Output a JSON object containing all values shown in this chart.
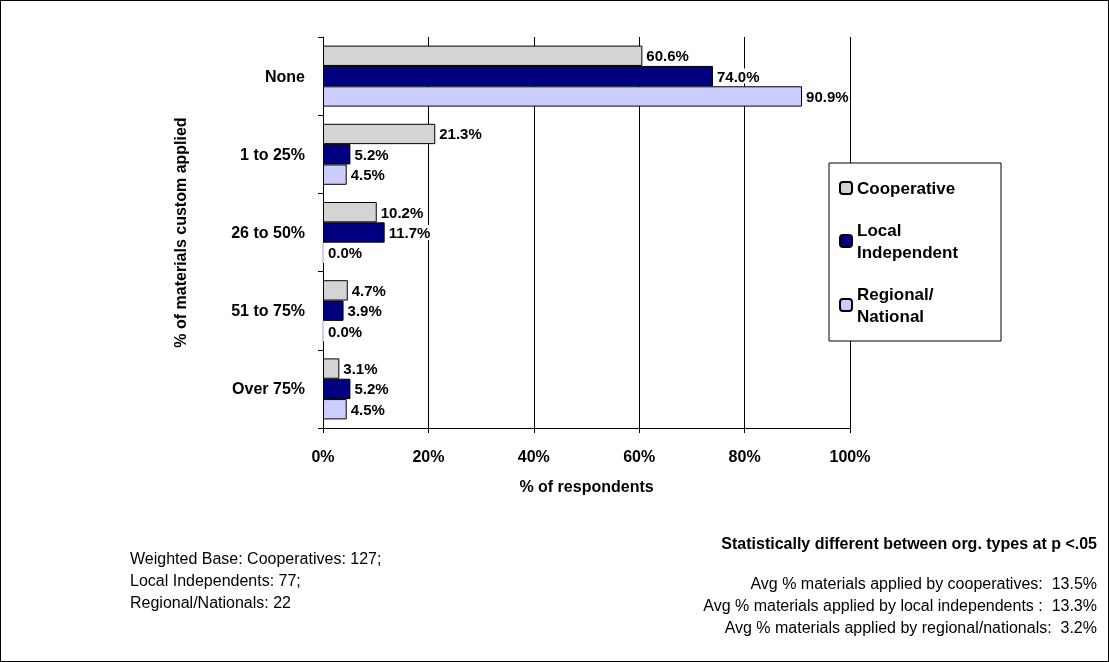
{
  "chart_data": {
    "type": "bar",
    "orientation": "horizontal",
    "categories": [
      "None",
      "1 to 25%",
      "26 to 50%",
      "51 to 75%",
      "Over 75%"
    ],
    "series": [
      {
        "name": "Cooperative",
        "color": "#d4d4d4",
        "values": [
          60.6,
          21.3,
          10.2,
          4.7,
          3.1
        ],
        "value_labels": [
          "60.6%",
          "21.3%",
          "10.2%",
          "4.7%",
          "3.1%"
        ]
      },
      {
        "name": "Local Independent",
        "color": "#000080",
        "values": [
          74.0,
          5.2,
          11.7,
          3.9,
          5.2
        ],
        "value_labels": [
          "74.0%",
          "5.2%",
          "11.7%",
          "3.9%",
          "5.2%"
        ]
      },
      {
        "name": "Regional/ National",
        "color": "#ccccff",
        "values": [
          90.9,
          4.5,
          0.0,
          0.0,
          4.5
        ],
        "value_labels": [
          "90.9%",
          "4.5%",
          "0.0%",
          "0.0%",
          "4.5%"
        ]
      }
    ],
    "xlim": [
      0,
      100
    ],
    "xticks": [
      {
        "value": 0,
        "label": "0%"
      },
      {
        "value": 20,
        "label": "20%"
      },
      {
        "value": 40,
        "label": "40%"
      },
      {
        "value": 60,
        "label": "60%"
      },
      {
        "value": 80,
        "label": "80%"
      },
      {
        "value": 100,
        "label": "100%"
      }
    ],
    "xlabel": "% of respondents",
    "ylabel": "% of materials custom applied",
    "grid": "x",
    "legend": "right",
    "annotations": [
      "Weighted Base: Cooperatives: 127;\nLocal Independents: 77;\nRegional/Nationals: 22",
      "Statistically different between org. types at p <.05",
      "Avg % materials applied by cooperatives:  13.5%\nAvg % materials applied by local independents :  13.3%\nAvg % materials applied by regional/nationals:  3.2%"
    ]
  }
}
